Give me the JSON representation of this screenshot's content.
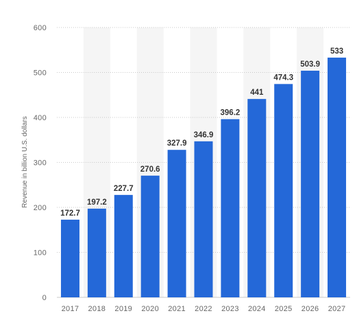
{
  "chart_data": {
    "type": "bar",
    "title": "",
    "xlabel": "",
    "ylabel": "Revenue in billion U.S. dollars",
    "categories": [
      "2017",
      "2018",
      "2019",
      "2020",
      "2021",
      "2022",
      "2023",
      "2024",
      "2025",
      "2026",
      "2027"
    ],
    "values": [
      172.7,
      197.2,
      227.7,
      270.6,
      327.9,
      346.9,
      396.2,
      441,
      474.3,
      503.9,
      533
    ],
    "labels": [
      "172.7",
      "197.2",
      "227.7",
      "270.6",
      "327.9",
      "346.9",
      "396.2",
      "441",
      "474.3",
      "503.9",
      "533"
    ],
    "ylim": [
      0,
      600
    ],
    "yticks": [
      0,
      100,
      200,
      300,
      400,
      500,
      600
    ],
    "grid": true,
    "bar_color": "#2468d8",
    "band_color": "#f5f5f5"
  }
}
